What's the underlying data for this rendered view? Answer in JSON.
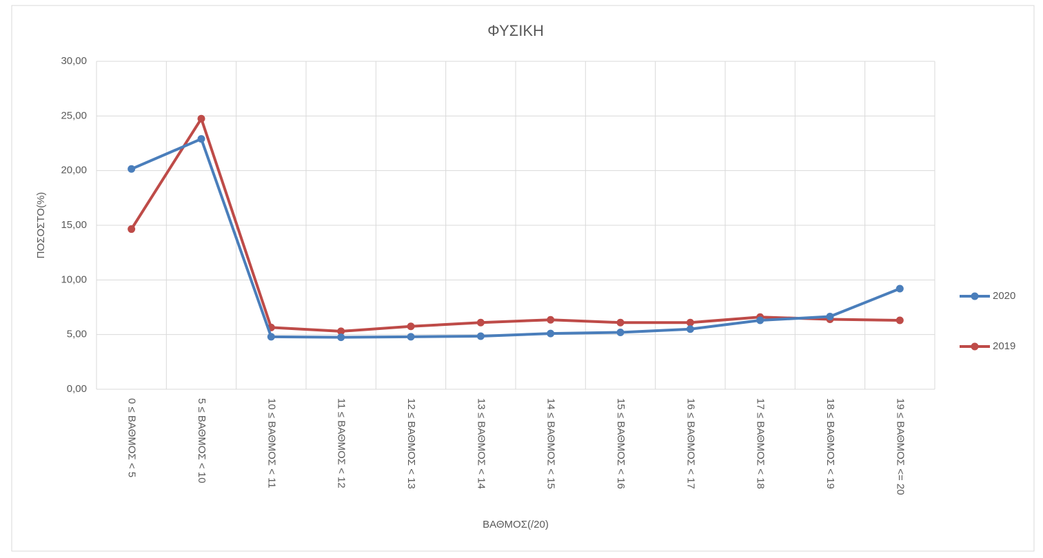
{
  "chart_data": {
    "type": "line",
    "title": "ΦΥΣΙΚΗ",
    "x_label": "ΒΑΘΜΟΣ(/20)",
    "y_label": "ΠΟΣΟΣΤΟ(%)",
    "categories": [
      "0 ≤ ΒΑΘΜΟΣ < 5",
      "5 ≤ ΒΑΘΜΟΣ < 10",
      "10 ≤ ΒΑΘΜΟΣ < 11",
      "11 ≤ ΒΑΘΜΟΣ < 12",
      "12 ≤ ΒΑΘΜΟΣ < 13",
      "13 ≤ ΒΑΘΜΟΣ < 14",
      "14 ≤ ΒΑΘΜΟΣ < 15",
      "15 ≤ ΒΑΘΜΟΣ < 16",
      "16 ≤ ΒΑΘΜΟΣ < 17",
      "17 ≤ ΒΑΘΜΟΣ < 18",
      "18 ≤ ΒΑΘΜΟΣ < 19",
      "19 ≤ ΒΑΘΜΟΣ <= 20"
    ],
    "series": [
      {
        "name": "2020",
        "color": "#4a7ebb",
        "values": [
          20.15,
          22.9,
          4.8,
          4.75,
          4.8,
          4.85,
          5.1,
          5.2,
          5.5,
          6.3,
          6.65,
          9.2
        ]
      },
      {
        "name": "2019",
        "color": "#be4b48",
        "values": [
          14.65,
          24.75,
          5.65,
          5.3,
          5.75,
          6.1,
          6.35,
          6.1,
          6.1,
          6.6,
          6.4,
          6.3
        ]
      }
    ],
    "ylim": [
      0,
      30
    ],
    "yticks": [
      {
        "value": 0,
        "label": "0,00"
      },
      {
        "value": 5,
        "label": "5,00"
      },
      {
        "value": 10,
        "label": "10,00"
      },
      {
        "value": 15,
        "label": "15,00"
      },
      {
        "value": 20,
        "label": "20,00"
      },
      {
        "value": 25,
        "label": "25,00"
      },
      {
        "value": 30,
        "label": "30,00"
      }
    ],
    "grid": true,
    "legend": "right"
  }
}
